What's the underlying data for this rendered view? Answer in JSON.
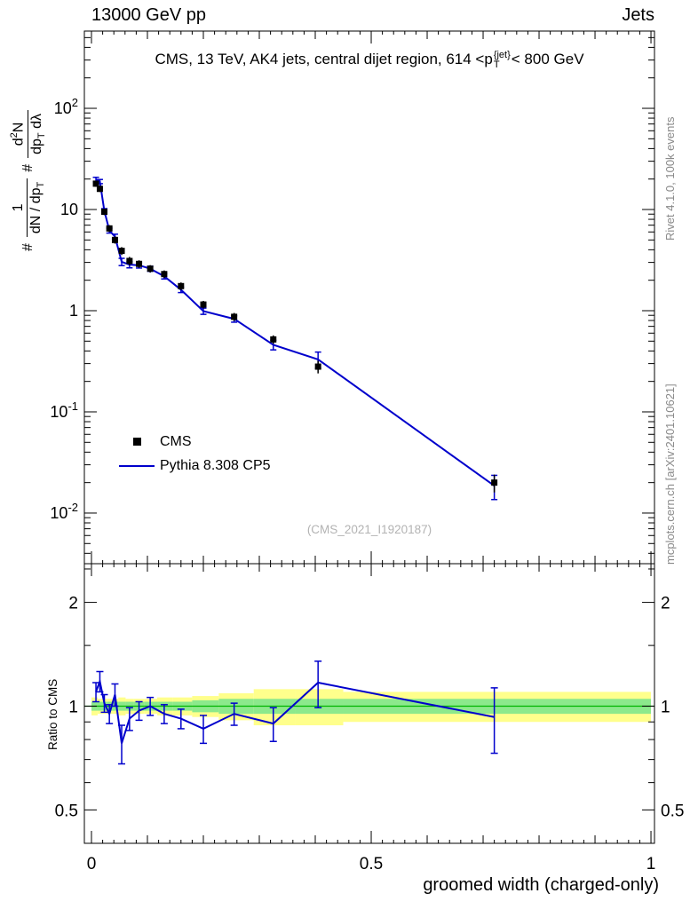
{
  "header": {
    "left": "13000 GeV pp",
    "right": "Jets"
  },
  "plot": {
    "title": {
      "pre": "CMS, 13 TeV, AK4 jets, central dijet region, 614 <p",
      "sup": "{jet}",
      "sub": "T",
      "post": "< 800 GeV"
    },
    "ylabel_parts": {
      "hash1": "#",
      "f1_num": "1",
      "f1_den": "dN / dp",
      "f1_den_sub": "T",
      "hash2": "#",
      "f2_num_a": "d",
      "f2_num_sup": "2",
      "f2_num_b": "N",
      "f2_den_a": "dp",
      "f2_den_sub": "T",
      "f2_den_b": " dλ"
    },
    "legend_cms": "CMS",
    "legend_pythia": "Pythia 8.308 CP5",
    "watermark": "(CMS_2021_I1920187)",
    "right_top": "Rivet 4.1.0, 100k events",
    "right_bottom": "mcplots.cern.ch [arXiv:2401.10621]",
    "ratio_ylabel": "Ratio to CMS",
    "xlabel": "groomed width (charged-only)"
  },
  "colors": {
    "accent_line": "#0000cc",
    "marker": "#000000",
    "yellow_band": "#ffff8c",
    "green_band": "#8ce98c",
    "band_center_line": "#00b400",
    "frame": "#000000",
    "muted_text": "#8a8a8a",
    "watermark_text": "#b3b3b3"
  },
  "chart_data": [
    {
      "type": "line",
      "title": "CMS, 13 TeV, AK4 jets, central dijet region, 614 <p^{jet}_T< 800 GeV",
      "xlabel": "groomed width (charged-only)",
      "ylabel": "# 1/(dN/dp_T) # d^2N/(dp_T dλ)",
      "xscale": "linear",
      "yscale": "log",
      "xlim": [
        -0.0127,
        1.0063
      ],
      "ylim": [
        0.00316,
        580
      ],
      "xticks": [
        {
          "v": 0,
          "label": "0"
        },
        {
          "v": 0.5,
          "label": "0.5"
        },
        {
          "v": 1,
          "label": "1"
        }
      ],
      "yticks": [
        {
          "v": 100,
          "label": "10^2"
        },
        {
          "v": 10,
          "label": "10"
        },
        {
          "v": 1,
          "label": "1"
        },
        {
          "v": 0.1,
          "label": "10^-1"
        },
        {
          "v": 0.01,
          "label": "10^-2"
        }
      ],
      "series": [
        {
          "name": "CMS",
          "type": "scatter",
          "marker": "square",
          "color": "#000000",
          "x": [
            0.008,
            0.015,
            0.023,
            0.032,
            0.042,
            0.054,
            0.068,
            0.085,
            0.105,
            0.13,
            0.16,
            0.2,
            0.255,
            0.325,
            0.405,
            0.72
          ],
          "y": [
            18,
            16,
            9.5,
            6.5,
            5.0,
            3.9,
            3.1,
            2.9,
            2.6,
            2.3,
            1.75,
            1.15,
            0.87,
            0.52,
            0.28,
            0.02
          ],
          "yerr": [
            1.2,
            1.1,
            0.7,
            0.5,
            0.4,
            0.35,
            0.3,
            0.25,
            0.22,
            0.2,
            0.15,
            0.1,
            0.08,
            0.05,
            0.04,
            0.004
          ]
        },
        {
          "name": "Pythia 8.308 CP5",
          "type": "line",
          "color": "#0000cc",
          "x": [
            0.008,
            0.015,
            0.023,
            0.032,
            0.042,
            0.054,
            0.068,
            0.085,
            0.105,
            0.13,
            0.16,
            0.2,
            0.255,
            0.325,
            0.405,
            0.72
          ],
          "y": [
            19.8,
            18.9,
            9.7,
            6.2,
            5.4,
            3.04,
            2.85,
            2.81,
            2.6,
            2.19,
            1.61,
            0.99,
            0.83,
            0.46,
            0.33,
            0.0186
          ],
          "yerr": [
            1.0,
            0.9,
            0.5,
            0.35,
            0.3,
            0.25,
            0.2,
            0.17,
            0.15,
            0.13,
            0.1,
            0.07,
            0.06,
            0.05,
            0.06,
            0.005
          ]
        }
      ]
    },
    {
      "type": "ratio-line",
      "ylabel": "Ratio to CMS",
      "xscale": "linear",
      "yscale": "log",
      "xlim": [
        -0.0127,
        1.0063
      ],
      "ylim": [
        0.4,
        2.59
      ],
      "yticks": [
        {
          "v": 2,
          "label": "2"
        },
        {
          "v": 1,
          "label": "1"
        },
        {
          "v": 0.5,
          "label": "0.5"
        }
      ],
      "yticks_minor": [
        0.6,
        0.7,
        0.8,
        0.9,
        1.5,
        2.5
      ],
      "bands": {
        "edges": [
          0,
          0.011,
          0.019,
          0.028,
          0.038,
          0.048,
          0.061,
          0.076,
          0.095,
          0.1175,
          0.145,
          0.18,
          0.2275,
          0.29,
          0.365,
          0.45,
          1.0
        ],
        "yellow_lo": [
          0.94,
          0.95,
          0.95,
          0.95,
          0.95,
          0.94,
          0.95,
          0.95,
          0.95,
          0.94,
          0.94,
          0.93,
          0.91,
          0.88,
          0.88,
          0.9
        ],
        "yellow_hi": [
          1.06,
          1.05,
          1.05,
          1.05,
          1.05,
          1.06,
          1.05,
          1.05,
          1.05,
          1.06,
          1.06,
          1.07,
          1.09,
          1.12,
          1.12,
          1.1
        ],
        "green_lo": [
          0.97,
          0.97,
          0.97,
          0.97,
          0.97,
          0.97,
          0.97,
          0.97,
          0.97,
          0.97,
          0.97,
          0.96,
          0.95,
          0.95,
          0.95,
          0.95
        ],
        "green_hi": [
          1.03,
          1.03,
          1.03,
          1.03,
          1.03,
          1.03,
          1.03,
          1.03,
          1.03,
          1.03,
          1.03,
          1.04,
          1.05,
          1.05,
          1.05,
          1.05
        ]
      },
      "series": [
        {
          "name": "Pythia 8.308 CP5 / CMS",
          "color": "#0000cc",
          "x": [
            0.008,
            0.015,
            0.023,
            0.032,
            0.042,
            0.054,
            0.068,
            0.085,
            0.105,
            0.13,
            0.16,
            0.2,
            0.255,
            0.325,
            0.405,
            0.72
          ],
          "y": [
            1.1,
            1.18,
            1.02,
            0.95,
            1.08,
            0.78,
            0.92,
            0.97,
            1.0,
            0.95,
            0.92,
            0.86,
            0.95,
            0.89,
            1.17,
            0.93
          ],
          "yerr": [
            0.07,
            0.08,
            0.06,
            0.06,
            0.08,
            0.1,
            0.07,
            0.06,
            0.06,
            0.06,
            0.06,
            0.08,
            0.07,
            0.1,
            0.18,
            0.2
          ]
        }
      ]
    }
  ]
}
